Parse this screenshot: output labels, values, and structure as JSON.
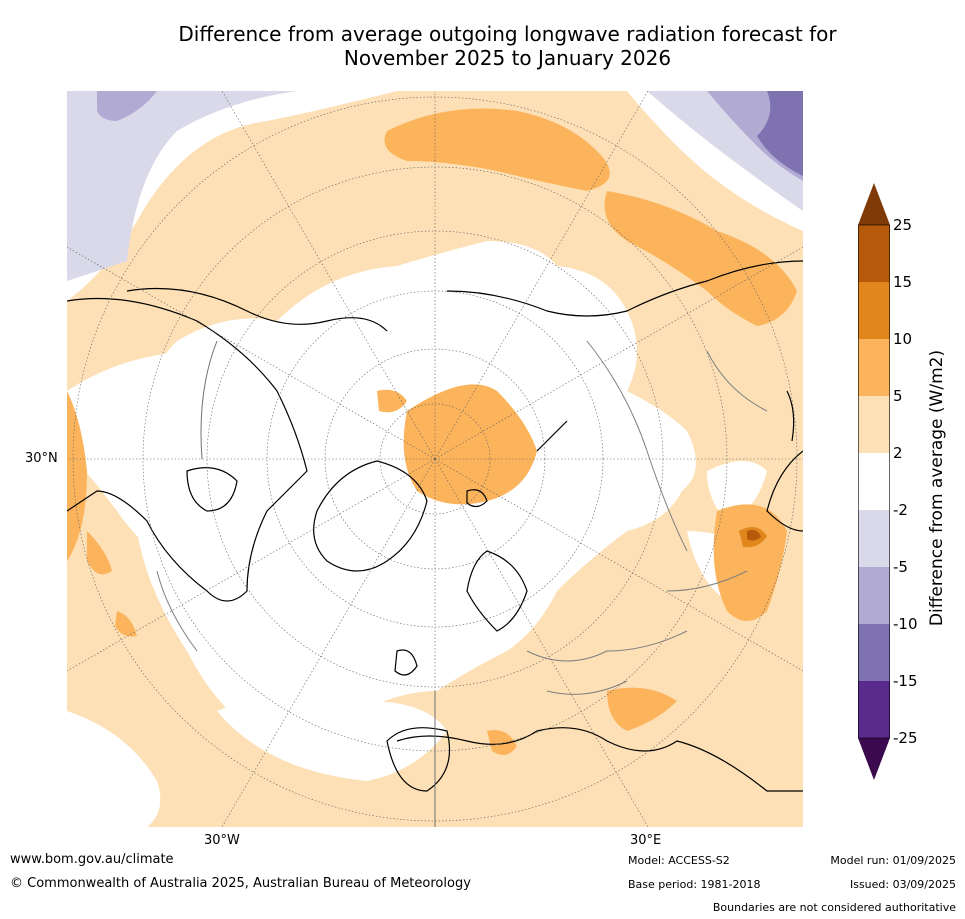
{
  "title_line1": "Difference from average outgoing longwave radiation forecast for",
  "title_line2": "November 2025 to January 2026",
  "map": {
    "projection": "north-polar-stereographic",
    "lat_label": "30°N",
    "lon_labels": {
      "west": "30°W",
      "east": "30°E"
    },
    "colors": {
      "neutral": "#ffffff",
      "pos_2_5": "#fde0b5",
      "pos_5_10": "#fbb35c",
      "pos_10_15": "#e0861c",
      "pos_15_25": "#b45a0a",
      "neg_2_5": "#d9d9ea",
      "neg_5_10": "#b1aad3",
      "neg_10_15": "#7f72b0",
      "coast": "#000000",
      "border": "#808080",
      "grid": "#606060"
    }
  },
  "colorbar": {
    "label": "Difference from average (W/m2)",
    "ticks": [
      "25",
      "15",
      "10",
      "5",
      "2",
      "-2",
      "-5",
      "-10",
      "-15",
      "-25"
    ],
    "colors": [
      "#3b0a4e",
      "#5a2a8c",
      "#7f72b0",
      "#b1aad3",
      "#d9d9ea",
      "#ffffff",
      "#fde0b5",
      "#fbb35c",
      "#e0861c",
      "#b45a0a",
      "#7f3a08"
    ]
  },
  "footer": {
    "website": "www.bom.gov.au/climate",
    "copyright": "© Commonwealth of Australia 2025, Australian Bureau of Meteorology",
    "model": "Model: ACCESS-S2",
    "base_period": "Base period: 1981-2018",
    "model_run": "Model run: 01/09/2025",
    "issued": "Issued: 03/09/2025",
    "disclaimer": "Boundaries are not considered authoritative"
  }
}
